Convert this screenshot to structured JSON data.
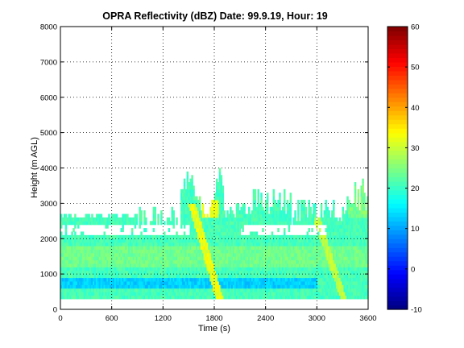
{
  "chart_data": {
    "type": "heatmap",
    "title": "OPRA Reflectivity (dBZ)  Date: 99.9.19, Hour: 19",
    "xlabel": "Time (s)",
    "ylabel": "Height (m AGL)",
    "xlim": [
      0,
      3600
    ],
    "ylim": [
      0,
      8000
    ],
    "x_ticks": [
      "0",
      "600",
      "1200",
      "1800",
      "2400",
      "3000",
      "3600"
    ],
    "y_ticks": [
      "0",
      "1000",
      "2000",
      "3000",
      "4000",
      "5000",
      "6000",
      "7000",
      "8000"
    ],
    "grid": true,
    "colorbar": {
      "colormap": "jet",
      "range": [
        -10,
        60
      ],
      "ticks": [
        "-10",
        "0",
        "10",
        "20",
        "30",
        "40",
        "50",
        "60"
      ]
    },
    "echo_features": [
      {
        "description": "Persistent low-level echo layer",
        "time_range_s": [
          0,
          3600
        ],
        "height_range_m": [
          300,
          2000
        ],
        "typical_dBZ": 20
      },
      {
        "description": "Weak band near 700 m",
        "time_range_s": [
          0,
          3000
        ],
        "height_range_m": [
          550,
          850
        ],
        "typical_dBZ": 12
      },
      {
        "description": "Sloping enhanced streak",
        "time_range_s": [
          1500,
          1850
        ],
        "height_range_m": [
          300,
          3000
        ],
        "typical_dBZ": 32
      },
      {
        "description": "Convective tower",
        "time_range_s": [
          1500,
          1850
        ],
        "height_range_m": [
          2000,
          3700
        ],
        "typical_dBZ": 28
      },
      {
        "description": "Sloping enhanced streak",
        "time_range_s": [
          2950,
          3300
        ],
        "height_range_m": [
          300,
          2500
        ],
        "typical_dBZ": 28
      },
      {
        "description": "Convective tower",
        "time_range_s": [
          3350,
          3600
        ],
        "height_range_m": [
          2000,
          3700
        ],
        "typical_dBZ": 25
      }
    ]
  }
}
